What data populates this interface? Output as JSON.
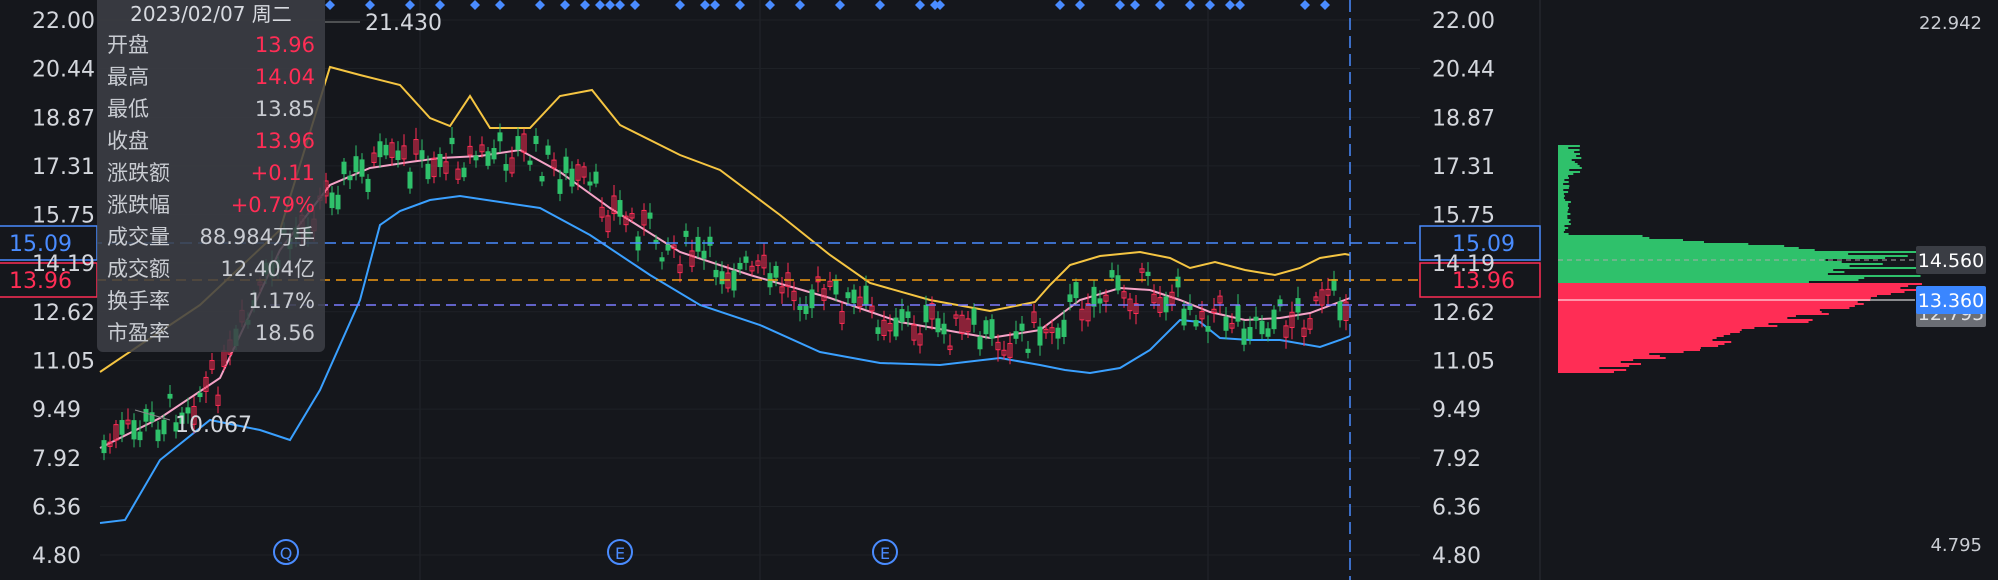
{
  "colors": {
    "up": "#ff2d55",
    "down": "#2fc16b",
    "ma_upper": "#f5c542",
    "ma_mid": "#f5a3c7",
    "ma_lower": "#3aa0ff",
    "accent": "#4a8cff",
    "orange": "#f39c12"
  },
  "tooltip": {
    "date": "2023/02/07 周二",
    "rows": [
      {
        "label": "开盘",
        "value": "13.96",
        "color": "up"
      },
      {
        "label": "最高",
        "value": "14.04",
        "color": "up"
      },
      {
        "label": "最低",
        "value": "13.85",
        "color": "neutral"
      },
      {
        "label": "收盘",
        "value": "13.96",
        "color": "up"
      },
      {
        "label": "涨跌额",
        "value": "+0.11",
        "color": "up"
      },
      {
        "label": "涨跌幅",
        "value": "+0.79%",
        "color": "up"
      },
      {
        "label": "成交量",
        "value": "88.984万手",
        "color": "neutral"
      },
      {
        "label": "成交额",
        "value": "12.404亿",
        "color": "neutral"
      },
      {
        "label": "换手率",
        "value": "1.17%",
        "color": "neutral"
      },
      {
        "label": "市盈率",
        "value": "18.56",
        "color": "neutral"
      }
    ]
  },
  "chart_data": {
    "type": "candlestick",
    "ylim": [
      4.8,
      22.0
    ],
    "y_ticks": [
      "22.00",
      "20.44",
      "18.87",
      "17.31",
      "15.75",
      "14.19",
      "12.62",
      "11.05",
      "9.49",
      "7.92",
      "6.36",
      "4.80"
    ],
    "annotations": {
      "high_label": "21.430",
      "low_label": "10.067"
    },
    "crosshair_price_labels": [
      "15.09",
      "13.96"
    ],
    "event_markers": [
      "Q",
      "E",
      "E"
    ],
    "profile": {
      "top_label": "22.942",
      "bottom_label": "4.795",
      "level_labels": [
        "14.560",
        "13.360",
        "12.795"
      ]
    }
  }
}
